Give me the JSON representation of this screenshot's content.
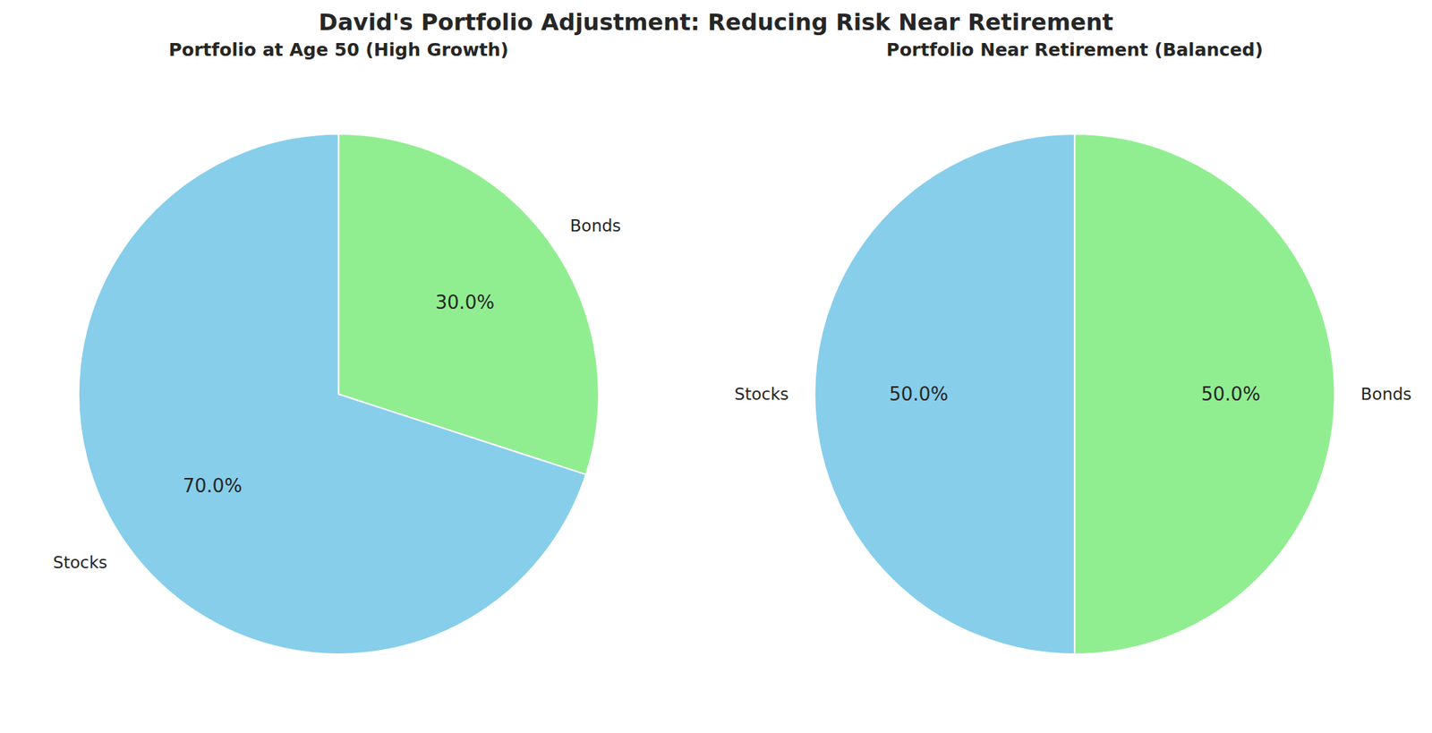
{
  "title": "David's Portfolio Adjustment: Reducing Risk Near Retirement",
  "chart_data": [
    {
      "type": "pie",
      "title": "Portfolio at Age 50 (High Growth)",
      "categories": [
        "Stocks",
        "Bonds"
      ],
      "values": [
        70,
        30
      ],
      "value_labels": [
        "70.0%",
        "30.0%"
      ],
      "colors": [
        "#87ceeb",
        "#90ee90"
      ],
      "data_labels": true
    },
    {
      "type": "pie",
      "title": "Portfolio Near Retirement (Balanced)",
      "categories": [
        "Stocks",
        "Bonds"
      ],
      "values": [
        50,
        50
      ],
      "value_labels": [
        "50.0%",
        "50.0%"
      ],
      "colors": [
        "#87ceeb",
        "#90ee90"
      ],
      "data_labels": true
    }
  ]
}
